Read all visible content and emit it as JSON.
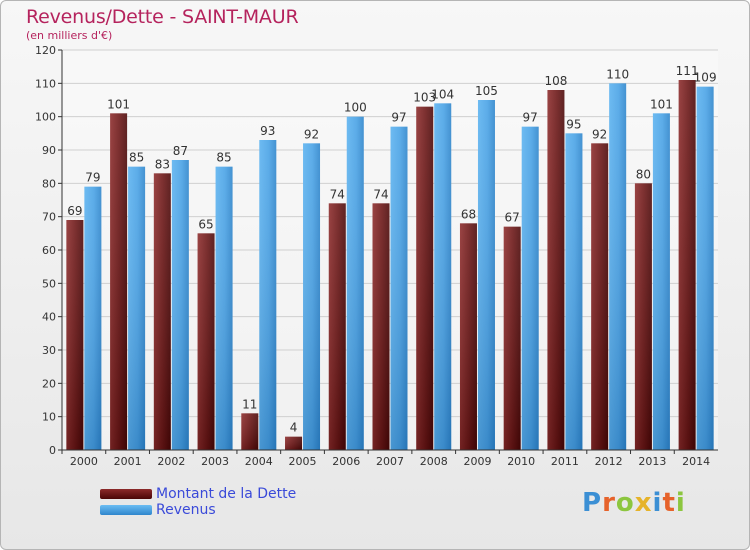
{
  "chart_data": {
    "type": "bar",
    "title": "Revenus/Dette - SAINT-MAUR",
    "subtitle": "(en milliers d'€)",
    "categories": [
      "2000",
      "2001",
      "2002",
      "2003",
      "2004",
      "2005",
      "2006",
      "2007",
      "2008",
      "2009",
      "2010",
      "2011",
      "2012",
      "2013",
      "2014"
    ],
    "series": [
      {
        "name": "Montant de la Dette",
        "color": "#6b0f0f",
        "values": [
          69,
          101,
          83,
          65,
          11,
          4,
          74,
          74,
          103,
          68,
          67,
          108,
          92,
          80,
          111
        ]
      },
      {
        "name": "Revenus",
        "color": "#4aa3e6",
        "values": [
          79,
          85,
          87,
          85,
          93,
          92,
          100,
          97,
          104,
          105,
          97,
          95,
          110,
          101,
          109
        ]
      }
    ],
    "ylim": [
      0,
      120
    ],
    "yticks": [
      0,
      10,
      20,
      30,
      40,
      50,
      60,
      70,
      80,
      90,
      100,
      110,
      120
    ],
    "grid": true,
    "legend": "bottom-left"
  },
  "logo": {
    "text": "Proxiti",
    "letters": [
      "P",
      "r",
      "o",
      "x",
      "i",
      "t",
      "i"
    ]
  }
}
